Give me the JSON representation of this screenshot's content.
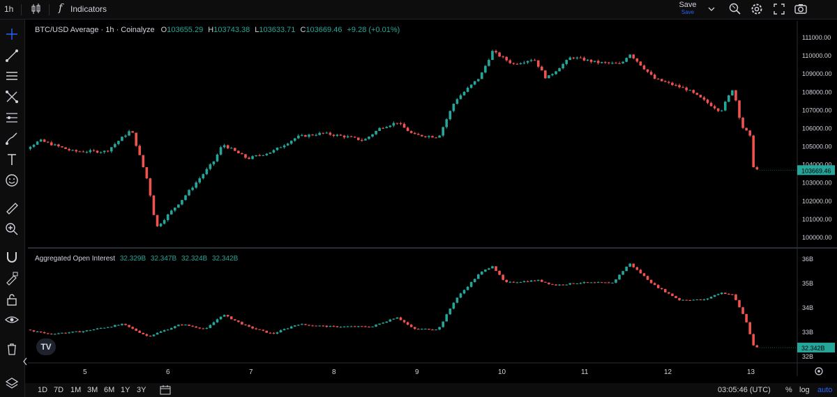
{
  "toolbar": {
    "timeframe": "1h",
    "indicators_label": "Indicators",
    "save_label": "Save",
    "save_sub_label": "Save"
  },
  "legend": {
    "title": "BTC/USD Average · 1h · Coinalyze",
    "o_key": "O",
    "o": "103655.29",
    "h_key": "H",
    "h": "103743.38",
    "l_key": "L",
    "l": "103633.71",
    "c_key": "C",
    "c": "103669.46",
    "change": "+9.28 (+0.01%)"
  },
  "oi_legend": {
    "title": "Aggregated Open Interest",
    "values": [
      "32.329B",
      "32.347B",
      "32.324B",
      "32.342B"
    ]
  },
  "bottom": {
    "ranges": [
      "1D",
      "7D",
      "1M",
      "3M",
      "6M",
      "1Y",
      "3Y"
    ],
    "clock": "03:05:46 (UTC)",
    "pct": "%",
    "log": "log",
    "auto": "auto"
  },
  "colors": {
    "up": "#26a69a",
    "down": "#ef5350",
    "badge": "#26a69a",
    "accent": "#2962ff",
    "background": "#000000",
    "grid_border": "#2a2e39"
  },
  "chart_data": [
    {
      "type": "candlestick",
      "title": "BTC/USD Average · 1h · Coinalyze",
      "x_labels": [
        "5",
        "6",
        "7",
        "8",
        "9",
        "10",
        "11",
        "12",
        "13"
      ],
      "y_ticks": [
        "111000.00",
        "110000.00",
        "109000.00",
        "108000.00",
        "107000.00",
        "106000.00",
        "105000.00",
        "104000.00",
        "103000.00",
        "102000.00",
        "101000.00",
        "100000.00"
      ],
      "ylim": [
        99600,
        111300
      ],
      "last_value_label": "103669.46",
      "last_value": 103669.46,
      "key_points": [
        [
          4.0,
          105400
        ],
        [
          4.1,
          105900
        ],
        [
          4.3,
          104800
        ],
        [
          4.5,
          105300
        ],
        [
          4.9,
          104700
        ],
        [
          5.3,
          104700
        ],
        [
          5.5,
          105500
        ],
        [
          5.6,
          105900
        ],
        [
          5.8,
          103000
        ],
        [
          5.9,
          100500
        ],
        [
          6.2,
          102000
        ],
        [
          6.6,
          104200
        ],
        [
          6.7,
          105100
        ],
        [
          7.0,
          104300
        ],
        [
          7.3,
          104700
        ],
        [
          7.6,
          105500
        ],
        [
          7.9,
          105700
        ],
        [
          8.2,
          105500
        ],
        [
          8.4,
          105300
        ],
        [
          8.6,
          106000
        ],
        [
          8.8,
          106300
        ],
        [
          9.0,
          105600
        ],
        [
          9.3,
          105500
        ],
        [
          9.5,
          107500
        ],
        [
          9.8,
          108800
        ],
        [
          9.95,
          110200
        ],
        [
          10.2,
          109500
        ],
        [
          10.45,
          109800
        ],
        [
          10.6,
          108700
        ],
        [
          10.9,
          109900
        ],
        [
          11.2,
          109600
        ],
        [
          11.5,
          109500
        ],
        [
          11.6,
          110100
        ],
        [
          11.9,
          108700
        ],
        [
          12.3,
          108100
        ],
        [
          12.5,
          107500
        ],
        [
          12.7,
          106900
        ],
        [
          12.85,
          108200
        ],
        [
          12.95,
          106100
        ],
        [
          13.05,
          105600
        ],
        [
          13.1,
          103700
        ]
      ]
    },
    {
      "type": "candlestick",
      "title": "Aggregated Open Interest",
      "x_labels": [
        "5",
        "6",
        "7",
        "8",
        "9",
        "10",
        "11",
        "12",
        "13"
      ],
      "y_ticks": [
        "36B",
        "35B",
        "34B",
        "33B",
        "32B"
      ],
      "ylim": [
        31.9,
        36.1
      ],
      "last_value_label": "32.342B",
      "last_value": 32.342,
      "key_points": [
        [
          4.0,
          33.45
        ],
        [
          4.3,
          33.1
        ],
        [
          4.6,
          32.9
        ],
        [
          5.0,
          33.0
        ],
        [
          5.5,
          33.3
        ],
        [
          5.8,
          32.8
        ],
        [
          6.2,
          33.3
        ],
        [
          6.5,
          33.1
        ],
        [
          6.7,
          33.7
        ],
        [
          7.0,
          33.2
        ],
        [
          7.3,
          32.9
        ],
        [
          7.6,
          33.3
        ],
        [
          8.0,
          33.2
        ],
        [
          8.5,
          33.2
        ],
        [
          8.8,
          33.6
        ],
        [
          9.0,
          33.1
        ],
        [
          9.3,
          33.1
        ],
        [
          9.5,
          34.3
        ],
        [
          9.8,
          35.4
        ],
        [
          9.95,
          35.7
        ],
        [
          10.1,
          35.0
        ],
        [
          10.5,
          35.1
        ],
        [
          10.7,
          34.9
        ],
        [
          11.0,
          35.0
        ],
        [
          11.4,
          35.0
        ],
        [
          11.6,
          35.8
        ],
        [
          11.9,
          34.9
        ],
        [
          12.2,
          34.3
        ],
        [
          12.5,
          34.3
        ],
        [
          12.7,
          34.6
        ],
        [
          12.85,
          34.5
        ],
        [
          13.0,
          33.5
        ],
        [
          13.1,
          32.35
        ]
      ]
    }
  ]
}
